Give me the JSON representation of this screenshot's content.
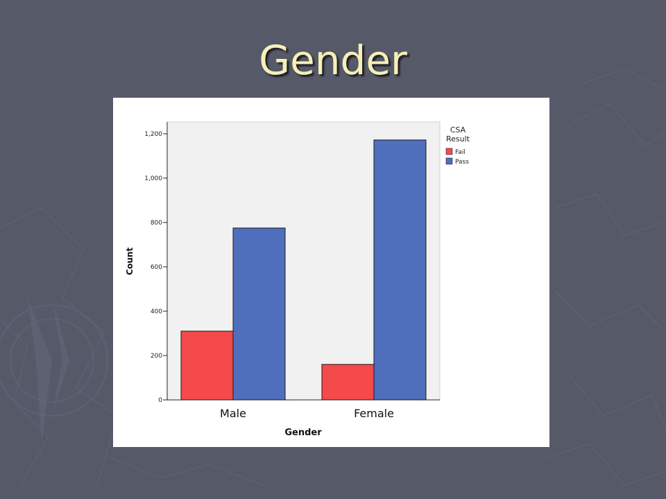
{
  "slide": {
    "title": "Gender"
  },
  "colors": {
    "background": "#565a68",
    "title": "#f6f0b8",
    "plot_area": "#f1f1f1",
    "fail": "#f54a4a",
    "pass": "#4f6ebc"
  },
  "chart_data": {
    "type": "bar",
    "title": "",
    "xlabel": "Gender",
    "ylabel": "Count",
    "categories": [
      "Male",
      "Female"
    ],
    "series": [
      {
        "name": "Fail",
        "values": [
          310,
          160
        ],
        "color": "#f54a4a"
      },
      {
        "name": "Pass",
        "values": [
          775,
          1172
        ],
        "color": "#4f6ebc"
      }
    ],
    "ylim": [
      0,
      1300
    ],
    "yticks": [
      0,
      200,
      400,
      600,
      800,
      1000,
      1200
    ],
    "ytick_labels": [
      "0",
      "200",
      "400",
      "600",
      "800",
      "1,000",
      "1,200"
    ],
    "legend": {
      "title": "CSA Result",
      "title_lines": [
        "CSA",
        "Result"
      ],
      "placement": "right-top",
      "entries": [
        "Fail",
        "Pass"
      ]
    },
    "grid": false
  }
}
